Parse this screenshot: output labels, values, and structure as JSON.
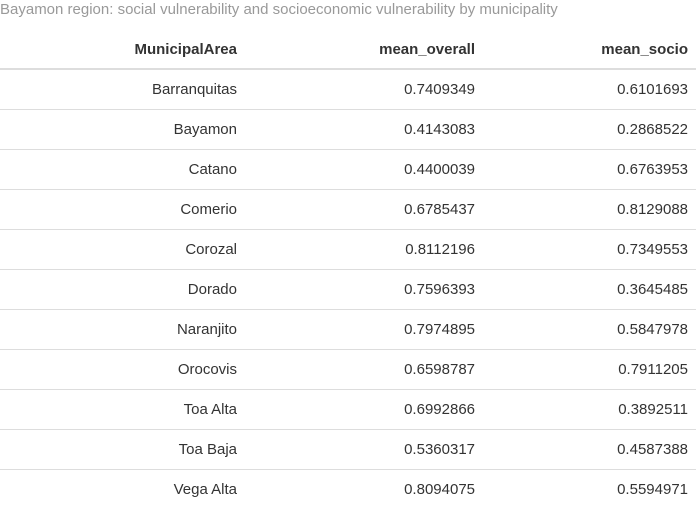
{
  "caption": "Bayamon region: social vulnerability and socioeconomic vulnerability by municipality",
  "chart_data": {
    "type": "table",
    "title": "Bayamon region: social vulnerability and socioeconomic vulnerability by municipality",
    "columns": [
      "MunicipalArea",
      "mean_overall",
      "mean_socio"
    ],
    "rows": [
      [
        "Barranquitas",
        "0.7409349",
        "0.6101693"
      ],
      [
        "Bayamon",
        "0.4143083",
        "0.2868522"
      ],
      [
        "Catano",
        "0.4400039",
        "0.6763953"
      ],
      [
        "Comerio",
        "0.6785437",
        "0.8129088"
      ],
      [
        "Corozal",
        "0.8112196",
        "0.7349553"
      ],
      [
        "Dorado",
        "0.7596393",
        "0.3645485"
      ],
      [
        "Naranjito",
        "0.7974895",
        "0.5847978"
      ],
      [
        "Orocovis",
        "0.6598787",
        "0.7911205"
      ],
      [
        "Toa Alta",
        "0.6992866",
        "0.3892511"
      ],
      [
        "Toa Baja",
        "0.5360317",
        "0.4587388"
      ],
      [
        "Vega Alta",
        "0.8094075",
        "0.5594971"
      ]
    ]
  }
}
